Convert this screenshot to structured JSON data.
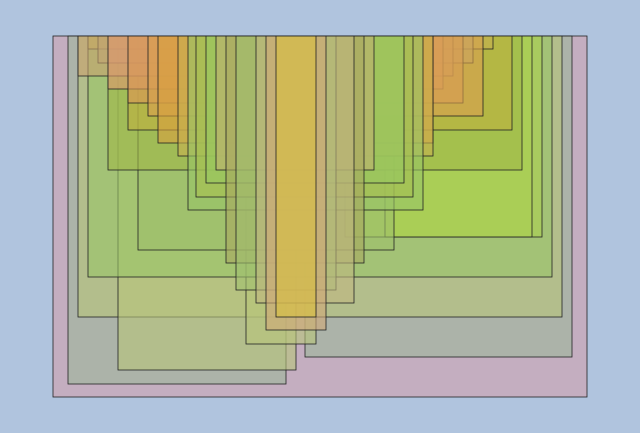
{
  "background": "#b0c4de",
  "stroke_color": "#222222",
  "rect_colors": [
    "#c4aec0",
    "#9db59a",
    "#9db59a",
    "#b8c47a",
    "#b8c47a",
    "#b8c47a",
    "#98c468",
    "#acd050",
    "#acd050",
    "#9ec06a",
    "#a0b848",
    "#c0b040",
    "#c4b050",
    "#b8a878",
    "#c8a070",
    "#e09870",
    "#d89858",
    "#d8a050",
    "#d8a040",
    "#c8b050",
    "#98c468",
    "#a8c050",
    "#98c860",
    "#c0b070",
    "#a8a860",
    "#a0c070",
    "#c0b880",
    "#d0a878",
    "#d8c040"
  ],
  "rect_opacity": 0.6
}
